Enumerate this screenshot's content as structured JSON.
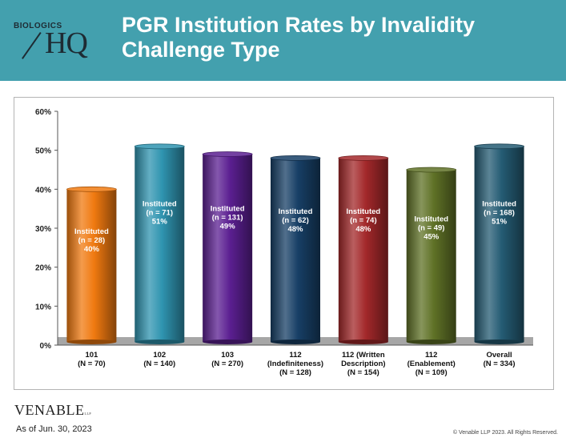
{
  "header": {
    "logo_small": "BIOLOGICS",
    "logo_hq": "HQ",
    "title": "PGR Institution Rates by Invalidity Challenge Type"
  },
  "footer": {
    "firm_logo": "VENABLE",
    "firm_logo_suffix": "LLP",
    "as_of": "As of Jun. 30, 2023",
    "copyright": "© Venable LLP 2023. All Rights Reserved."
  },
  "colors": {
    "header_bg": "#43a0ae",
    "bars": [
      "#f07a10",
      "#2f94b0",
      "#5b1f91",
      "#173f66",
      "#a3282a",
      "#5f7126",
      "#245b73"
    ]
  },
  "chart_data": {
    "type": "bar",
    "title": "",
    "xlabel": "",
    "ylabel": "",
    "ylim": [
      0,
      60
    ],
    "yticks": [
      "0%",
      "10%",
      "20%",
      "30%",
      "40%",
      "50%",
      "60%"
    ],
    "categories": [
      [
        "101",
        "(N = 70)"
      ],
      [
        "102",
        "(N = 140)"
      ],
      [
        "103",
        "(N = 270)"
      ],
      [
        "112",
        "(Indefiniteness)",
        "(N = 128)"
      ],
      [
        "112 (Written",
        "Description)",
        "(N = 154)"
      ],
      [
        "112",
        "(Enablement)",
        "(N = 109)"
      ],
      [
        "Overall",
        "(N = 334)"
      ]
    ],
    "values": [
      40,
      51,
      49,
      48,
      48,
      45,
      51
    ],
    "data_labels": [
      [
        "Instituted",
        "(n = 28)",
        "40%"
      ],
      [
        "Instituted",
        "(n = 71)",
        "51%"
      ],
      [
        "Instituted",
        "(n = 131)",
        "49%"
      ],
      [
        "Instituted",
        "(n = 62)",
        "48%"
      ],
      [
        "Instituted",
        "(n = 74)",
        "48%"
      ],
      [
        "Instituted",
        "(n = 49)",
        "45%"
      ],
      [
        "Instituted",
        "(n = 168)",
        "51%"
      ]
    ],
    "grid": false,
    "legend": "none"
  }
}
